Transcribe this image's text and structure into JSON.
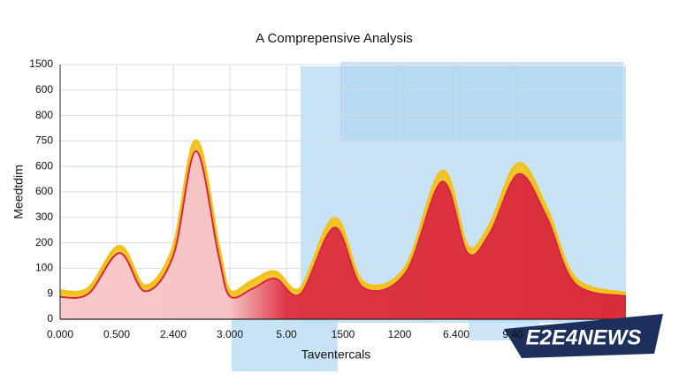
{
  "chart_data": {
    "type": "line",
    "title": "A Comprepensive Analysis",
    "y_label": "Meedtdim",
    "x_label": "Taventercals",
    "watermark": "E2E4NEWS",
    "x": [
      0,
      0.5,
      1.05,
      1.5,
      2,
      2.4,
      2.8,
      3,
      3.4,
      3.8,
      4.25,
      4.85,
      5.35,
      6.1,
      6.75,
      7.2,
      7.6,
      8.1,
      8.6,
      9.1,
      10
    ],
    "series": [
      {
        "color": "#f2c21b",
        "values": [
          1.1,
          1.2,
          2.85,
          1.3,
          2.8,
          7.0,
          2.8,
          1.1,
          1.5,
          1.85,
          1.2,
          3.95,
          1.45,
          2.0,
          5.8,
          2.85,
          3.7,
          6.1,
          4.3,
          1.6,
          1.0
        ]
      },
      {
        "color": "#d8263a",
        "values": [
          0.87,
          1.0,
          2.6,
          1.1,
          2.5,
          6.6,
          2.5,
          0.9,
          1.2,
          1.6,
          1.0,
          3.6,
          1.25,
          1.8,
          5.4,
          2.6,
          3.4,
          5.7,
          4.0,
          1.4,
          0.9
        ]
      }
    ],
    "xlim": [
      0,
      10
    ],
    "xticks": [
      {
        "value": 0,
        "label": "0.000"
      },
      {
        "value": 1,
        "label": "0.500"
      },
      {
        "value": 2,
        "label": "2.400"
      },
      {
        "value": 3,
        "label": "3.000"
      },
      {
        "value": 4,
        "label": "5.00"
      },
      {
        "value": 5,
        "label": "1500"
      },
      {
        "value": 6,
        "label": "1200"
      },
      {
        "value": 7,
        "label": "6.400"
      },
      {
        "value": 8,
        "label": "9.40"
      }
    ],
    "ylim": [
      0,
      10
    ],
    "yticks": [
      0,
      {
        "value": 1,
        "label": "9"
      },
      {
        "value": 2,
        "label": "100"
      },
      {
        "value": 3,
        "label": "200"
      },
      {
        "value": 4,
        "label": "300"
      },
      {
        "value": 5,
        "label": "600"
      },
      {
        "value": 6,
        "label": "600"
      },
      {
        "value": 7,
        "label": "750"
      },
      {
        "value": 8,
        "label": "800"
      },
      {
        "value": 9,
        "label": "600"
      },
      {
        "value": 10,
        "label": "1500"
      }
    ],
    "grid": true
  }
}
